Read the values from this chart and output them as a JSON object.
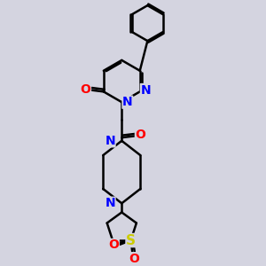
{
  "bg_color": "#d4d4e0",
  "line_color": "#000000",
  "bond_width": 1.8,
  "atom_colors": {
    "N": "#0000ff",
    "O": "#ff0000",
    "S": "#cccc00",
    "C": "#000000"
  },
  "font_size_atom": 10
}
